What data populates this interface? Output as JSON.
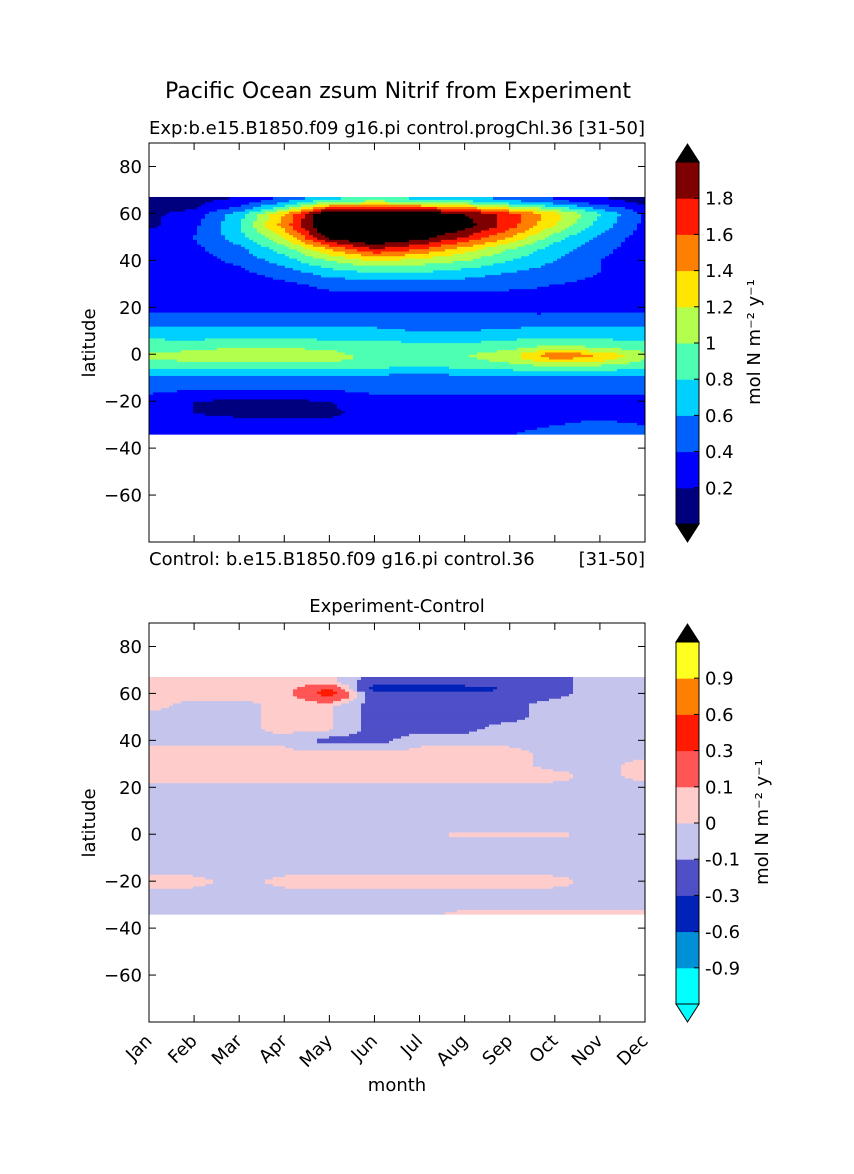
{
  "suptitle": "Pacific Ocean zsum Nitrif from Experiment",
  "chart_data": [
    {
      "type": "heatmap",
      "title_left": "Exp:b.e15.B1850.f09 g16.pi control.progChl.36",
      "title_right": "[31-50]",
      "footer_left": "Control: b.e15.B1850.f09 g16.pi control.36",
      "footer_right": "[31-50]",
      "xlabel": "",
      "ylabel": "latitude",
      "x_ticklabels": [
        "Jan",
        "Feb",
        "Mar",
        "Apr",
        "May",
        "Jun",
        "Jul",
        "Aug",
        "Sep",
        "Oct",
        "Nov",
        "Dec"
      ],
      "xlim": [
        0,
        11
      ],
      "ylim": [
        -80,
        90
      ],
      "yticks": [
        80,
        60,
        40,
        20,
        0,
        -20,
        -40,
        -60
      ],
      "data_lat_range": [
        -34,
        67
      ],
      "colorbar": {
        "label": "mol N m⁻² y⁻¹",
        "levels": [
          0,
          0.2,
          0.4,
          0.6,
          0.8,
          1.0,
          1.2,
          1.4,
          1.6,
          1.8,
          2.0
        ],
        "ticklabels": [
          "0.2",
          "0.4",
          "0.6",
          "0.8",
          "1",
          "1.2",
          "1.4",
          "1.6",
          "1.8"
        ],
        "colors": [
          "#00007f",
          "#0000ff",
          "#0060ff",
          "#00d0ff",
          "#4dffb2",
          "#b2ff4d",
          "#ffe600",
          "#ff7f00",
          "#ff1a00",
          "#7f0000"
        ],
        "under": "#000000",
        "over": "#000000"
      },
      "grid": {
        "months": [
          0,
          1,
          2,
          3,
          4,
          5,
          6,
          7,
          8,
          9,
          10,
          11
        ],
        "lats": [
          -34,
          -30,
          -25,
          -20,
          -15,
          -10,
          -5,
          -2,
          0,
          2,
          5,
          10,
          15,
          20,
          25,
          30,
          35,
          40,
          45,
          50,
          55,
          60,
          62,
          65,
          67
        ],
        "values": [
          [
            0.3,
            0.3,
            0.3,
            0.35,
            0.35,
            0.35,
            0.35,
            0.35,
            0.4,
            0.45,
            0.45,
            0.4
          ],
          [
            0.3,
            0.3,
            0.3,
            0.3,
            0.3,
            0.3,
            0.3,
            0.3,
            0.35,
            0.4,
            0.45,
            0.4
          ],
          [
            0.3,
            0.2,
            0.15,
            0.15,
            0.15,
            0.3,
            0.3,
            0.3,
            0.3,
            0.3,
            0.35,
            0.3
          ],
          [
            0.3,
            0.2,
            0.15,
            0.15,
            0.2,
            0.3,
            0.3,
            0.3,
            0.3,
            0.3,
            0.3,
            0.3
          ],
          [
            0.45,
            0.4,
            0.4,
            0.4,
            0.4,
            0.45,
            0.45,
            0.45,
            0.45,
            0.45,
            0.45,
            0.45
          ],
          [
            0.5,
            0.5,
            0.5,
            0.55,
            0.55,
            0.5,
            0.5,
            0.5,
            0.55,
            0.55,
            0.55,
            0.5
          ],
          [
            0.85,
            0.85,
            0.85,
            0.9,
            0.9,
            0.85,
            0.8,
            0.85,
            0.9,
            1.0,
            0.95,
            0.85
          ],
          [
            1.0,
            1.05,
            1.1,
            1.1,
            1.05,
            0.95,
            0.9,
            0.95,
            1.1,
            1.4,
            1.3,
            1.0
          ],
          [
            1.05,
            1.05,
            1.1,
            1.1,
            1.05,
            0.95,
            0.9,
            1.0,
            1.1,
            1.6,
            1.4,
            1.05
          ],
          [
            0.95,
            1.0,
            1.05,
            1.05,
            1.0,
            0.9,
            0.85,
            0.9,
            1.0,
            1.2,
            1.1,
            0.95
          ],
          [
            0.85,
            0.85,
            0.9,
            0.9,
            0.85,
            0.85,
            0.8,
            0.8,
            0.85,
            0.9,
            0.85,
            0.85
          ],
          [
            0.7,
            0.65,
            0.65,
            0.65,
            0.65,
            0.65,
            0.6,
            0.6,
            0.65,
            0.7,
            0.7,
            0.65
          ],
          [
            0.5,
            0.5,
            0.5,
            0.5,
            0.5,
            0.5,
            0.45,
            0.45,
            0.45,
            0.45,
            0.5,
            0.5
          ],
          [
            0.35,
            0.35,
            0.35,
            0.35,
            0.35,
            0.35,
            0.35,
            0.35,
            0.35,
            0.35,
            0.35,
            0.35
          ],
          [
            0.35,
            0.3,
            0.3,
            0.3,
            0.35,
            0.35,
            0.35,
            0.35,
            0.35,
            0.35,
            0.35,
            0.35
          ],
          [
            0.3,
            0.3,
            0.3,
            0.35,
            0.45,
            0.5,
            0.5,
            0.5,
            0.45,
            0.4,
            0.35,
            0.3
          ],
          [
            0.3,
            0.3,
            0.35,
            0.5,
            0.7,
            0.8,
            0.8,
            0.7,
            0.6,
            0.5,
            0.4,
            0.3
          ],
          [
            0.3,
            0.3,
            0.45,
            0.7,
            1.0,
            1.2,
            1.1,
            1.0,
            0.8,
            0.6,
            0.4,
            0.3
          ],
          [
            0.3,
            0.35,
            0.55,
            0.9,
            1.4,
            1.8,
            1.6,
            1.3,
            1.0,
            0.7,
            0.45,
            0.3
          ],
          [
            0.3,
            0.4,
            0.7,
            1.2,
            2.1,
            2.3,
            2.1,
            1.8,
            1.4,
            0.9,
            0.55,
            0.3
          ],
          [
            0.15,
            0.35,
            0.8,
            1.5,
            2.3,
            2.4,
            2.3,
            2.1,
            1.7,
            1.2,
            0.7,
            0.35
          ],
          [
            0.15,
            0.3,
            0.7,
            1.4,
            2.3,
            2.3,
            2.2,
            2.0,
            1.7,
            1.3,
            0.8,
            0.35
          ],
          [
            0.1,
            0.2,
            0.5,
            1.0,
            1.8,
            1.9,
            1.8,
            1.6,
            1.3,
            1.0,
            0.6,
            0.3
          ],
          [
            0.1,
            0.15,
            0.3,
            0.6,
            1.0,
            1.1,
            1.0,
            0.9,
            0.7,
            0.5,
            0.3,
            0.15
          ],
          [
            0.1,
            0.1,
            0.2,
            0.4,
            0.7,
            0.8,
            0.7,
            0.6,
            0.5,
            0.35,
            0.2,
            0.1
          ]
        ]
      }
    },
    {
      "type": "heatmap",
      "title": "Experiment-Control",
      "xlabel": "month",
      "ylabel": "latitude",
      "x_ticklabels": [
        "Jan",
        "Feb",
        "Mar",
        "Apr",
        "May",
        "Jun",
        "Jul",
        "Aug",
        "Sep",
        "Oct",
        "Nov",
        "Dec"
      ],
      "xlim": [
        0,
        11
      ],
      "ylim": [
        -80,
        90
      ],
      "yticks": [
        80,
        60,
        40,
        20,
        0,
        -20,
        -40,
        -60
      ],
      "data_lat_range": [
        -34,
        67
      ],
      "colorbar": {
        "label": "mol N m⁻² y⁻¹",
        "levels": [
          -1.2,
          -0.9,
          -0.6,
          -0.3,
          -0.1,
          0,
          0.1,
          0.3,
          0.6,
          0.9,
          1.2
        ],
        "ticklabels": [
          "-0.9",
          "-0.6",
          "-0.3",
          "-0.1",
          "0",
          "0.1",
          "0.3",
          "0.6",
          "0.9"
        ],
        "colors": [
          "#00ffff",
          "#0090d8",
          "#0022b8",
          "#4f4fc8",
          "#c4c4ec",
          "#ffcccc",
          "#ff5555",
          "#ff1a00",
          "#ff8000",
          "#ffff20"
        ],
        "under": "#00ffff",
        "over": "#000000"
      },
      "grid": {
        "months": [
          0,
          1,
          2,
          3,
          4,
          5,
          6,
          7,
          8,
          9,
          10,
          11
        ],
        "lats": [
          -34,
          -30,
          -25,
          -20,
          -15,
          -10,
          -5,
          -2,
          0,
          2,
          5,
          10,
          15,
          20,
          25,
          30,
          35,
          40,
          45,
          50,
          55,
          60,
          62,
          65,
          67
        ],
        "values": [
          [
            -0.02,
            -0.02,
            -0.02,
            -0.02,
            -0.02,
            -0.02,
            -0.02,
            0.02,
            0.02,
            0.02,
            0.02,
            0.02
          ],
          [
            -0.02,
            -0.02,
            -0.02,
            -0.02,
            -0.02,
            -0.02,
            -0.02,
            -0.02,
            -0.02,
            -0.02,
            -0.02,
            -0.02
          ],
          [
            -0.02,
            -0.02,
            -0.02,
            -0.02,
            -0.02,
            -0.02,
            -0.02,
            -0.02,
            -0.02,
            -0.02,
            -0.02,
            -0.02
          ],
          [
            0.02,
            0.02,
            -0.02,
            0.02,
            0.02,
            0.02,
            0.02,
            0.02,
            0.02,
            0.02,
            -0.02,
            -0.02
          ],
          [
            -0.02,
            -0.02,
            -0.02,
            -0.02,
            -0.02,
            -0.02,
            -0.02,
            -0.02,
            -0.02,
            -0.02,
            -0.02,
            -0.02
          ],
          [
            -0.02,
            -0.02,
            -0.02,
            -0.02,
            -0.02,
            -0.02,
            -0.02,
            -0.02,
            -0.02,
            -0.02,
            -0.02,
            -0.02
          ],
          [
            -0.02,
            -0.02,
            -0.02,
            -0.02,
            -0.02,
            -0.02,
            -0.02,
            -0.02,
            -0.02,
            -0.02,
            -0.02,
            -0.02
          ],
          [
            -0.02,
            -0.02,
            -0.02,
            -0.02,
            -0.02,
            -0.02,
            -0.02,
            -0.02,
            -0.02,
            -0.02,
            -0.02,
            -0.02
          ],
          [
            -0.02,
            -0.02,
            -0.02,
            -0.02,
            -0.02,
            -0.02,
            -0.02,
            0.02,
            0.02,
            0.02,
            -0.02,
            -0.02
          ],
          [
            -0.02,
            -0.02,
            -0.02,
            -0.02,
            -0.02,
            -0.02,
            -0.02,
            -0.02,
            -0.02,
            -0.02,
            -0.02,
            -0.02
          ],
          [
            -0.02,
            -0.02,
            -0.02,
            -0.02,
            -0.02,
            -0.02,
            -0.02,
            -0.02,
            -0.02,
            -0.02,
            -0.02,
            -0.02
          ],
          [
            -0.02,
            -0.02,
            -0.02,
            -0.02,
            -0.02,
            -0.02,
            -0.02,
            -0.02,
            -0.02,
            -0.02,
            -0.02,
            -0.02
          ],
          [
            -0.02,
            -0.02,
            -0.02,
            -0.02,
            -0.02,
            -0.02,
            -0.02,
            -0.02,
            -0.02,
            -0.02,
            -0.02,
            -0.02
          ],
          [
            -0.02,
            -0.02,
            -0.02,
            -0.02,
            -0.02,
            -0.02,
            -0.02,
            -0.02,
            -0.02,
            -0.02,
            -0.02,
            -0.02
          ],
          [
            0.02,
            0.02,
            0.02,
            0.02,
            0.02,
            0.02,
            0.02,
            0.02,
            0.02,
            0.02,
            -0.02,
            0.02
          ],
          [
            0.02,
            0.02,
            0.02,
            0.02,
            0.02,
            0.02,
            0.02,
            0.02,
            0.02,
            -0.02,
            -0.02,
            0.02
          ],
          [
            0.02,
            0.02,
            0.02,
            0.02,
            0.02,
            0.02,
            0.02,
            0.02,
            0.02,
            -0.02,
            -0.02,
            -0.02
          ],
          [
            -0.02,
            -0.02,
            -0.02,
            -0.02,
            -0.15,
            -0.15,
            -0.02,
            -0.02,
            -0.02,
            -0.02,
            -0.02,
            -0.02
          ],
          [
            -0.02,
            -0.02,
            -0.02,
            0.02,
            0.02,
            -0.15,
            -0.15,
            -0.15,
            -0.02,
            -0.02,
            -0.02,
            -0.02
          ],
          [
            -0.02,
            -0.02,
            -0.02,
            0.02,
            0.02,
            -0.15,
            -0.15,
            -0.15,
            -0.15,
            -0.02,
            -0.02,
            -0.02
          ],
          [
            0.02,
            -0.02,
            -0.02,
            0.02,
            0.02,
            -0.15,
            -0.15,
            -0.15,
            -0.15,
            -0.02,
            -0.02,
            -0.02
          ],
          [
            0.02,
            0.02,
            0.02,
            0.02,
            0.4,
            -0.2,
            -0.2,
            -0.2,
            -0.2,
            -0.15,
            -0.02,
            -0.02
          ],
          [
            0.02,
            0.02,
            0.02,
            0.02,
            0.35,
            -0.4,
            -0.45,
            -0.4,
            -0.3,
            -0.15,
            -0.02,
            -0.02
          ],
          [
            0.02,
            0.02,
            0.02,
            0.02,
            0.05,
            -0.2,
            -0.2,
            -0.2,
            -0.15,
            -0.15,
            -0.02,
            -0.02
          ],
          [
            0.02,
            0.02,
            0.02,
            0.02,
            0.02,
            -0.15,
            -0.15,
            -0.15,
            -0.15,
            -0.15,
            -0.02,
            -0.02
          ]
        ]
      }
    }
  ]
}
